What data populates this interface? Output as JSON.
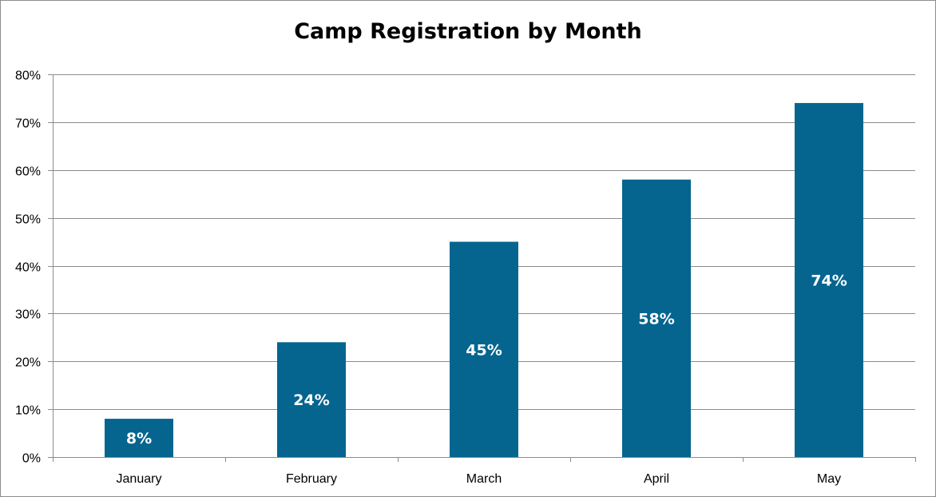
{
  "colors": {
    "bar": "#05658F",
    "gridline": "#8c8c8c",
    "axis": "#8c8c8c",
    "data_label": "#ffffff"
  },
  "chart_data": {
    "type": "bar",
    "title": "Camp Registration by Month",
    "xlabel": "",
    "ylabel": "",
    "categories": [
      "January",
      "February",
      "March",
      "April",
      "May"
    ],
    "values": [
      8,
      24,
      45,
      58,
      74
    ],
    "data_labels": [
      "8%",
      "24%",
      "45%",
      "58%",
      "74%"
    ],
    "ylim": [
      0,
      80
    ],
    "y_ticks": [
      0,
      10,
      20,
      30,
      40,
      50,
      60,
      70,
      80
    ],
    "y_tick_labels": [
      "0%",
      "10%",
      "20%",
      "30%",
      "40%",
      "50%",
      "60%",
      "70%",
      "80%"
    ],
    "grid": true,
    "legend": "none"
  }
}
